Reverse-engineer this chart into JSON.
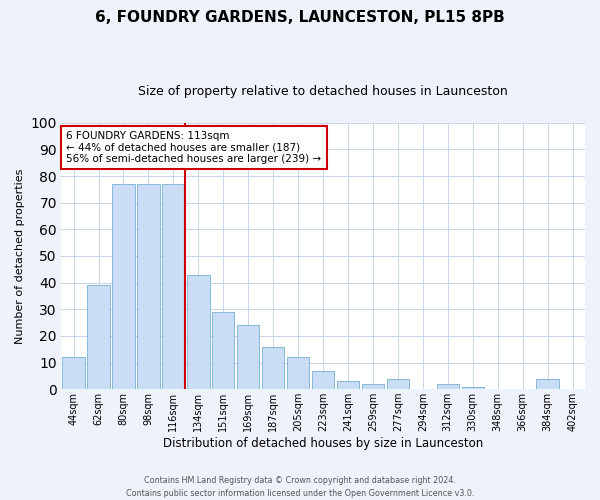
{
  "title": "6, FOUNDRY GARDENS, LAUNCESTON, PL15 8PB",
  "subtitle": "Size of property relative to detached houses in Launceston",
  "xlabel": "Distribution of detached houses by size in Launceston",
  "ylabel": "Number of detached properties",
  "categories": [
    "44sqm",
    "62sqm",
    "80sqm",
    "98sqm",
    "116sqm",
    "134sqm",
    "151sqm",
    "169sqm",
    "187sqm",
    "205sqm",
    "223sqm",
    "241sqm",
    "259sqm",
    "277sqm",
    "294sqm",
    "312sqm",
    "330sqm",
    "348sqm",
    "366sqm",
    "384sqm",
    "402sqm"
  ],
  "values": [
    12,
    39,
    77,
    77,
    77,
    43,
    29,
    24,
    16,
    12,
    7,
    3,
    2,
    4,
    0,
    2,
    1,
    0,
    0,
    4,
    0
  ],
  "bar_color": "#c9ddf5",
  "bar_edge_color": "#7aafd4",
  "vline_index": 4,
  "vline_color": "#cc0000",
  "ylim": [
    0,
    100
  ],
  "yticks": [
    0,
    10,
    20,
    30,
    40,
    50,
    60,
    70,
    80,
    90,
    100
  ],
  "annotation_title": "6 FOUNDRY GARDENS: 113sqm",
  "annotation_line1": "← 44% of detached houses are smaller (187)",
  "annotation_line2": "56% of semi-detached houses are larger (239) →",
  "annotation_box_color": "#ffffff",
  "annotation_box_edge": "#cc0000",
  "footer_line1": "Contains HM Land Registry data © Crown copyright and database right 2024.",
  "footer_line2": "Contains public sector information licensed under the Open Government Licence v3.0.",
  "bg_color": "#eef2fa",
  "plot_bg_color": "#ffffff",
  "grid_color": "#c8d4e8",
  "title_fontsize": 11,
  "subtitle_fontsize": 9
}
